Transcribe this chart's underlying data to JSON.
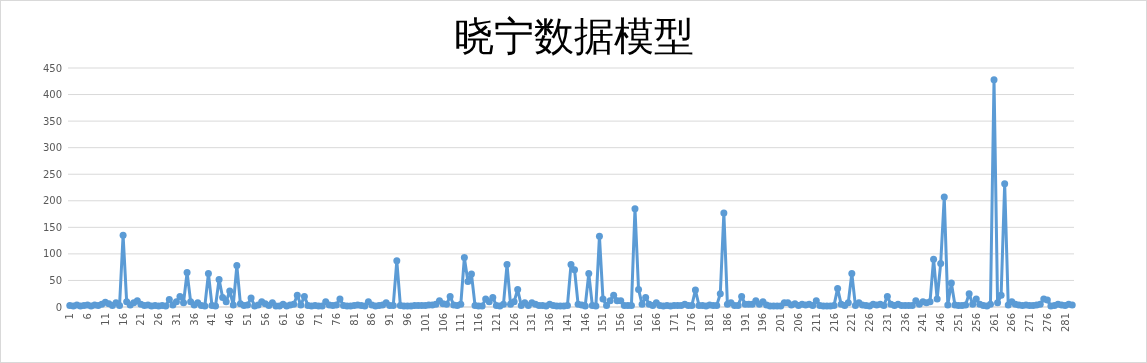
{
  "chart_data": {
    "type": "line",
    "title": "晓宁数据模型",
    "categories": [
      "1",
      null,
      null,
      null,
      null,
      "6",
      null,
      null,
      null,
      null,
      "11",
      null,
      null,
      null,
      null,
      "16",
      null,
      null,
      null,
      null,
      "21",
      null,
      null,
      null,
      null,
      "26",
      null,
      null,
      null,
      null,
      "31",
      null,
      null,
      null,
      null,
      "36",
      null,
      null,
      null,
      null,
      "41",
      null,
      null,
      null,
      null,
      "46",
      null,
      null,
      null,
      null,
      "51",
      null,
      null,
      null,
      null,
      "56",
      null,
      null,
      null,
      null,
      "61",
      null,
      null,
      null,
      null,
      "66",
      null,
      null,
      null,
      null,
      "71",
      null,
      null,
      null,
      null,
      "76",
      null,
      null,
      null,
      null,
      "81",
      null,
      null,
      null,
      null,
      "86",
      null,
      null,
      null,
      null,
      "91",
      null,
      null,
      null,
      null,
      "96",
      null,
      null,
      null,
      null,
      "101",
      null,
      null,
      null,
      null,
      "106",
      null,
      null,
      null,
      null,
      "111",
      null,
      null,
      null,
      null,
      "116",
      null,
      null,
      null,
      null,
      "121",
      null,
      null,
      null,
      null,
      "126",
      null,
      null,
      null,
      null,
      "131",
      null,
      null,
      null,
      null,
      "136",
      null,
      null,
      null,
      null,
      "141",
      null,
      null,
      null,
      null,
      "146",
      null,
      null,
      null,
      null,
      "151",
      null,
      null,
      null,
      null,
      "156",
      null,
      null,
      null,
      null,
      "161",
      null,
      null,
      null,
      null,
      "166",
      null,
      null,
      null,
      null,
      "171",
      null,
      null,
      null,
      null,
      "176",
      null,
      null,
      null,
      null,
      "181",
      null,
      null,
      null,
      null,
      "186",
      null,
      null,
      null,
      null,
      "191",
      null,
      null,
      null,
      null,
      "196",
      null,
      null,
      null,
      null,
      "201",
      null,
      null,
      null,
      null,
      "206",
      null,
      null,
      null,
      null,
      "211",
      null,
      null,
      null,
      null,
      "216",
      null,
      null,
      null,
      null,
      "221",
      null,
      null,
      null,
      null,
      "226",
      null,
      null,
      null,
      null,
      "231",
      null,
      null,
      null,
      null,
      "236",
      null,
      null,
      null,
      null,
      "241",
      null,
      null,
      null,
      null,
      "246",
      null,
      null,
      null,
      null,
      "251",
      null,
      null,
      null,
      null,
      "256",
      null,
      null,
      null,
      null,
      "261",
      null,
      null,
      null,
      null,
      "266",
      null,
      null,
      null,
      null,
      "271",
      null,
      null,
      null,
      null,
      "276",
      null,
      null,
      null,
      null,
      "281",
      null,
      null
    ],
    "series": [
      {
        "color": "#5b9bd5",
        "values": [
          3,
          2,
          4,
          2,
          3,
          4,
          2,
          4,
          3,
          5,
          9,
          6,
          3,
          8,
          3,
          135,
          10,
          4,
          8,
          12,
          5,
          3,
          4,
          2,
          3,
          2,
          3,
          2,
          14,
          4,
          10,
          20,
          8,
          65,
          10,
          4,
          8,
          3,
          2,
          63,
          3,
          2,
          52,
          18,
          10,
          30,
          4,
          78,
          6,
          3,
          4,
          17,
          2,
          4,
          10,
          6,
          3,
          8,
          2,
          2,
          5,
          2,
          4,
          5,
          22,
          4,
          20,
          3,
          2,
          3,
          2,
          2,
          10,
          4,
          3,
          4,
          15,
          3,
          2,
          2,
          3,
          4,
          3,
          2,
          10,
          4,
          2,
          3,
          4,
          8,
          3,
          3,
          87,
          3,
          2,
          2,
          2,
          3,
          3,
          3,
          3,
          4,
          4,
          5,
          12,
          6,
          5,
          20,
          4,
          3,
          5,
          93,
          48,
          62,
          3,
          2,
          2,
          15,
          10,
          18,
          3,
          2,
          5,
          80,
          5,
          10,
          33,
          3,
          8,
          3,
          8,
          5,
          3,
          3,
          2,
          5,
          3,
          2,
          2,
          2,
          3,
          80,
          70,
          5,
          4,
          2,
          63,
          3,
          2,
          133,
          15,
          3,
          12,
          22,
          12,
          12,
          3,
          3,
          3,
          185,
          33,
          5,
          18,
          5,
          3,
          8,
          3,
          2,
          3,
          2,
          3,
          3,
          3,
          5,
          3,
          3,
          32,
          3,
          3,
          2,
          4,
          3,
          3,
          25,
          177,
          5,
          8,
          3,
          3,
          20,
          5,
          5,
          5,
          12,
          5,
          10,
          4,
          2,
          2,
          2,
          2,
          8,
          8,
          4,
          6,
          3,
          5,
          4,
          5,
          3,
          12,
          3,
          2,
          2,
          2,
          3,
          35,
          5,
          3,
          8,
          63,
          3,
          8,
          4,
          3,
          2,
          5,
          4,
          5,
          3,
          20,
          5,
          3,
          5,
          3,
          3,
          3,
          3,
          12,
          5,
          10,
          8,
          10,
          90,
          15,
          82,
          207,
          4,
          45,
          4,
          3,
          3,
          4,
          25,
          5,
          15,
          5,
          3,
          2,
          5,
          428,
          8,
          22,
          232,
          4,
          10,
          5,
          4,
          3,
          4,
          3,
          3,
          4,
          5,
          15,
          13,
          2,
          3,
          5,
          4,
          3,
          5,
          4
        ]
      }
    ],
    "ylim": [
      0,
      450
    ],
    "yticks": [
      0,
      50,
      100,
      150,
      200,
      250,
      300,
      350,
      400,
      450
    ],
    "grid": "y",
    "marker": "circle",
    "line_style": "solid"
  }
}
